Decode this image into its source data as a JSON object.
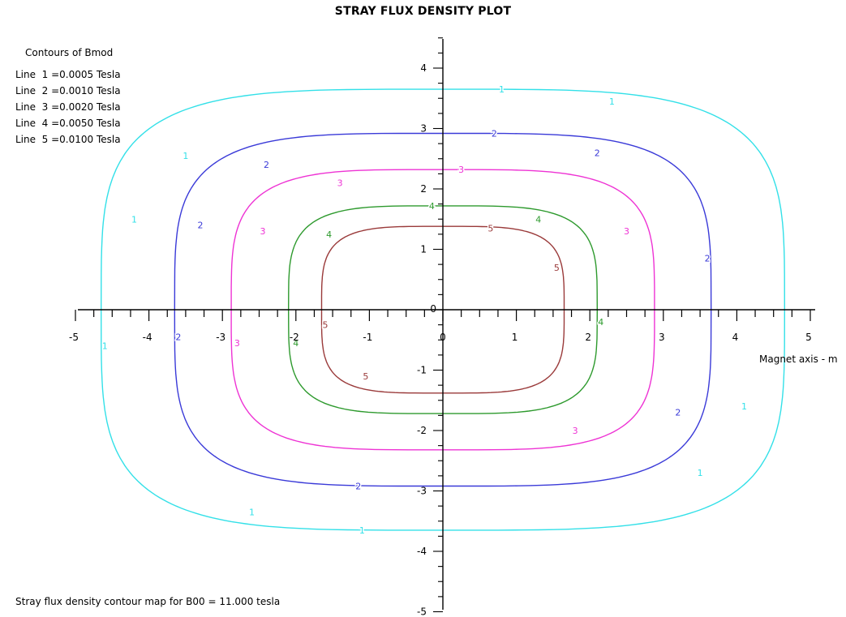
{
  "title": "STRAY FLUX DENSITY PLOT",
  "legend": {
    "heading": "Contours of Bmod",
    "items": [
      "Line  1 =0.0005 Tesla",
      "Line  2 =0.0010 Tesla",
      "Line  3 =0.0020 Tesla",
      "Line  4 =0.0050 Tesla",
      "Line  5 =0.0100 Tesla"
    ]
  },
  "footer": "Stray flux density contour map for B00 = 11.000 tesla",
  "chart_data": {
    "type": "line",
    "title": "STRAY FLUX DENSITY PLOT",
    "xlabel": "Magnet axis - m",
    "ylabel": "",
    "xlim": [
      -5,
      5
    ],
    "ylim": [
      -5,
      5
    ],
    "xticks": [
      -5,
      -4,
      -3,
      -2,
      -1,
      0,
      1,
      2,
      3,
      4,
      5
    ],
    "yticks": [
      -5,
      -4,
      -3,
      -2,
      -1,
      0,
      1,
      2,
      3,
      4
    ],
    "grid": false,
    "legend_position": "top-left",
    "series": [
      {
        "name": "1",
        "value_tesla": 0.0005,
        "color": "#33e0e8",
        "semi_axis_x": 4.65,
        "semi_axis_y": 3.65,
        "label_positions": [
          [
            0.8,
            3.65
          ],
          [
            2.3,
            3.45
          ],
          [
            -3.5,
            2.55
          ],
          [
            -4.2,
            1.5
          ],
          [
            -4.6,
            -0.6
          ],
          [
            4.1,
            -1.6
          ],
          [
            3.5,
            -2.7
          ],
          [
            -2.6,
            -3.35
          ],
          [
            -1.1,
            -3.65
          ]
        ]
      },
      {
        "name": "2",
        "value_tesla": 0.001,
        "color": "#3a3ad8",
        "semi_axis_x": 3.65,
        "semi_axis_y": 2.92,
        "label_positions": [
          [
            0.7,
            2.92
          ],
          [
            2.1,
            2.6
          ],
          [
            -2.4,
            2.4
          ],
          [
            -3.3,
            1.4
          ],
          [
            3.6,
            0.85
          ],
          [
            -3.6,
            -0.45
          ],
          [
            3.2,
            -1.7
          ],
          [
            -1.15,
            -2.92
          ]
        ]
      },
      {
        "name": "3",
        "value_tesla": 0.002,
        "color": "#ee33d4",
        "semi_axis_x": 2.88,
        "semi_axis_y": 2.32,
        "label_positions": [
          [
            0.25,
            2.32
          ],
          [
            -1.4,
            2.1
          ],
          [
            2.5,
            1.3
          ],
          [
            -2.45,
            1.3
          ],
          [
            -2.8,
            -0.55
          ],
          [
            1.8,
            -2.0
          ]
        ]
      },
      {
        "name": "4",
        "value_tesla": 0.005,
        "color": "#2e9a2e",
        "semi_axis_x": 2.1,
        "semi_axis_y": 1.72,
        "label_positions": [
          [
            -0.15,
            1.72
          ],
          [
            1.3,
            1.5
          ],
          [
            -1.55,
            1.25
          ],
          [
            2.15,
            -0.2
          ],
          [
            -2.0,
            -0.55
          ]
        ]
      },
      {
        "name": "5",
        "value_tesla": 0.01,
        "color": "#9a3a3a",
        "semi_axis_x": 1.65,
        "semi_axis_y": 1.38,
        "label_positions": [
          [
            0.65,
            1.35
          ],
          [
            1.55,
            0.7
          ],
          [
            -1.6,
            -0.25
          ],
          [
            -1.05,
            -1.1
          ]
        ]
      }
    ]
  }
}
